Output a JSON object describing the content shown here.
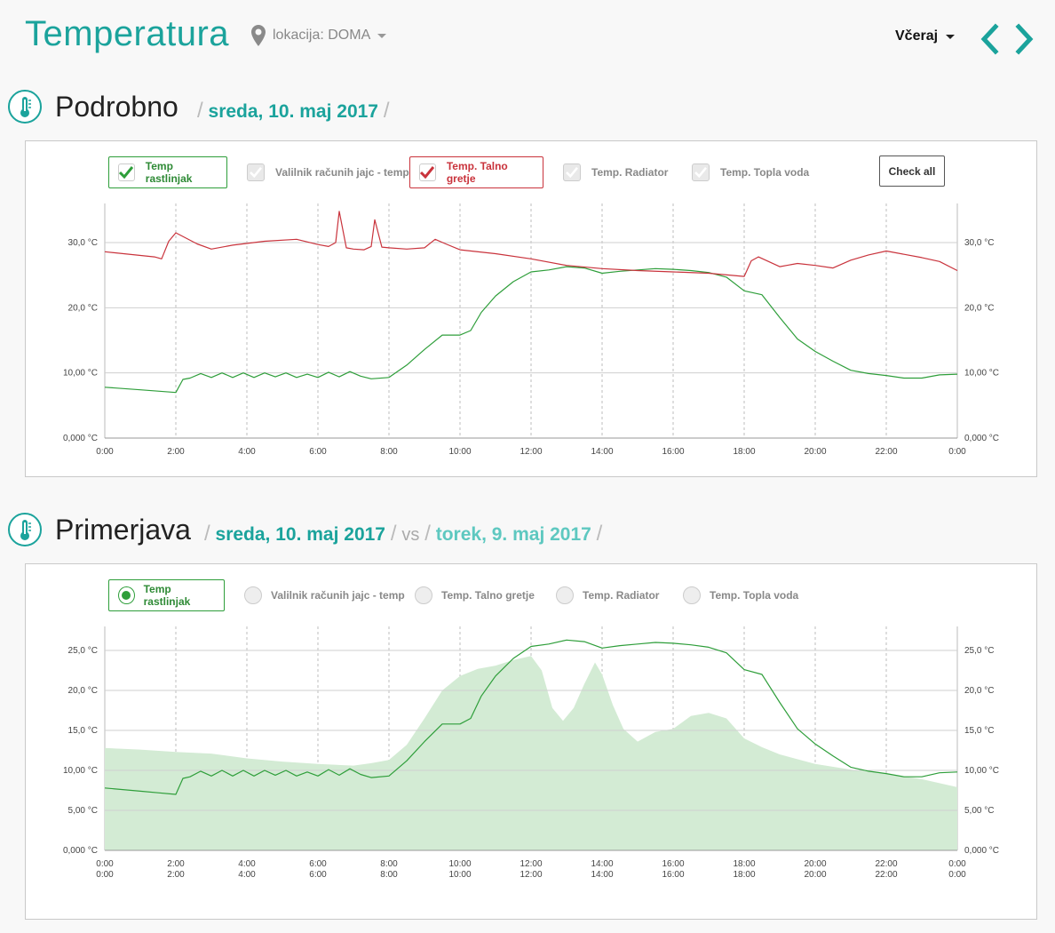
{
  "header": {
    "title": "Temperatura",
    "location_label": "lokacija: DOMA",
    "period_label": "Včeraj"
  },
  "detail": {
    "title": "Podrobno",
    "date": "sreda, 10. maj 2017",
    "legend": [
      {
        "label": "Temp rastlinjak",
        "checked": true,
        "color": "#2e9e3a"
      },
      {
        "label": "Valilnik računih jajc - temp",
        "checked": false
      },
      {
        "label": "Temp. Talno gretje",
        "checked": true,
        "color": "#c9333c"
      },
      {
        "label": "Temp. Radiator",
        "checked": false
      },
      {
        "label": "Temp. Topla voda",
        "checked": false
      }
    ],
    "check_all_label": "Check all"
  },
  "compare": {
    "title": "Primerjava",
    "date_a": "sreda, 10. maj 2017",
    "vs_label": "vs",
    "date_b": "torek, 9. maj 2017",
    "legend": [
      {
        "label": "Temp rastlinjak",
        "selected": true
      },
      {
        "label": "Valilnik računih jajc - temp",
        "selected": false
      },
      {
        "label": "Temp. Talno gretje",
        "selected": false
      },
      {
        "label": "Temp. Radiator",
        "selected": false
      },
      {
        "label": "Temp. Topla voda",
        "selected": false
      }
    ]
  },
  "colors": {
    "accent": "#1ba39c",
    "green": "#2e9e3a",
    "red": "#c9333c",
    "area": "#d3ebd4"
  },
  "chart_data": [
    {
      "type": "line",
      "x_ticks": [
        "0:00",
        "2:00",
        "4:00",
        "6:00",
        "8:00",
        "10:00",
        "12:00",
        "14:00",
        "16:00",
        "18:00",
        "20:00",
        "22:00",
        "0:00"
      ],
      "y_ticks": [
        "0,000 °C",
        "10,00 °C",
        "20,0 °C",
        "30,0 °C"
      ],
      "ylim": [
        0,
        36
      ],
      "grid": true,
      "series": [
        {
          "name": "Temp rastlinjak",
          "color": "#2e9e3a",
          "x": [
            0,
            1,
            1.5,
            2,
            2.2,
            2.4,
            2.7,
            3,
            3.3,
            3.6,
            3.9,
            4.2,
            4.5,
            4.8,
            5.1,
            5.4,
            5.7,
            6,
            6.3,
            6.6,
            6.9,
            7.2,
            7.5,
            8,
            8.5,
            9,
            9.5,
            10,
            10.3,
            10.6,
            11,
            11.5,
            12,
            12.5,
            13,
            13.5,
            14,
            14.5,
            15,
            15.5,
            16,
            16.5,
            17,
            17.5,
            18,
            18.5,
            19,
            19.5,
            20,
            20.5,
            21,
            21.5,
            22,
            22.5,
            23,
            23.5,
            24
          ],
          "y": [
            7.8,
            7.4,
            7.2,
            7,
            9,
            9.2,
            9.9,
            9.3,
            10,
            9.3,
            10,
            9.3,
            10,
            9.4,
            10,
            9.3,
            9.8,
            9.3,
            10.1,
            9.4,
            10.2,
            9.5,
            9.1,
            9.3,
            11.2,
            13.6,
            15.8,
            15.8,
            16.5,
            19.3,
            21.8,
            24,
            25.5,
            25.8,
            26.3,
            26.1,
            25.3,
            25.6,
            25.8,
            26,
            25.9,
            25.7,
            25.4,
            24.7,
            22.6,
            22,
            18.5,
            15.2,
            13.3,
            11.8,
            10.4,
            9.9,
            9.6,
            9.2,
            9.2,
            9.7,
            9.8
          ]
        },
        {
          "name": "Temp. Talno gretje",
          "color": "#c9333c",
          "x": [
            0,
            1.4,
            1.6,
            1.8,
            2,
            2.6,
            3,
            3.6,
            4.5,
            5.4,
            6,
            6.3,
            6.5,
            6.6,
            6.8,
            7,
            7.3,
            7.5,
            7.6,
            7.8,
            8,
            8.5,
            9,
            9.3,
            9.6,
            10,
            11,
            12,
            13,
            14,
            15,
            16,
            17,
            18,
            18.2,
            18.4,
            19,
            19.5,
            20,
            20.5,
            21,
            21.5,
            22,
            22.5,
            23,
            23.5,
            24
          ],
          "y": [
            28.6,
            27.8,
            27.5,
            30.2,
            31.5,
            29.8,
            29,
            29.6,
            30.2,
            30.5,
            29.7,
            29.4,
            30,
            34.8,
            29.2,
            29,
            28.9,
            29.4,
            33.5,
            29.3,
            29.2,
            29,
            29.2,
            30.5,
            29.8,
            28.9,
            28.3,
            27.5,
            26.5,
            26,
            25.7,
            25.5,
            25.3,
            24.8,
            27.2,
            27.8,
            26.3,
            26.8,
            26.5,
            26.1,
            27.3,
            28.1,
            28.7,
            28.2,
            27.7,
            27.1,
            25.7
          ]
        }
      ]
    },
    {
      "type": "area",
      "x_ticks": [
        "0:00",
        "2:00",
        "4:00",
        "6:00",
        "8:00",
        "10:00",
        "12:00",
        "14:00",
        "16:00",
        "18:00",
        "20:00",
        "22:00",
        "0:00"
      ],
      "x_ticks_b": [
        "0:00",
        "2:00",
        "4:00",
        "6:00",
        "8:00",
        "10:00",
        "12:00",
        "14:00",
        "16:00",
        "18:00",
        "20:00",
        "22:00",
        "0:00"
      ],
      "y_ticks": [
        "0,000 °C",
        "5,00 °C",
        "10,00 °C",
        "15,0 °C",
        "20,0 °C",
        "25,0 °C"
      ],
      "ylim": [
        0,
        28
      ],
      "grid": true,
      "series": [
        {
          "name": "sreda, 10. maj 2017",
          "color": "#2e9e3a",
          "style": "line",
          "x": [
            0,
            1,
            1.5,
            2,
            2.2,
            2.4,
            2.7,
            3,
            3.3,
            3.6,
            3.9,
            4.2,
            4.5,
            4.8,
            5.1,
            5.4,
            5.7,
            6,
            6.3,
            6.6,
            6.9,
            7.2,
            7.5,
            8,
            8.5,
            9,
            9.5,
            10,
            10.3,
            10.6,
            11,
            11.5,
            12,
            12.5,
            13,
            13.5,
            14,
            14.5,
            15,
            15.5,
            16,
            16.5,
            17,
            17.5,
            18,
            18.5,
            19,
            19.5,
            20,
            20.5,
            21,
            21.5,
            22,
            22.5,
            23,
            23.5,
            24
          ],
          "y": [
            7.8,
            7.4,
            7.2,
            7,
            9,
            9.2,
            9.9,
            9.3,
            10,
            9.3,
            10,
            9.3,
            10,
            9.4,
            10,
            9.3,
            9.8,
            9.3,
            10.1,
            9.4,
            10.2,
            9.5,
            9.1,
            9.3,
            11.2,
            13.6,
            15.8,
            15.8,
            16.5,
            19.3,
            21.8,
            24,
            25.5,
            25.8,
            26.3,
            26.1,
            25.3,
            25.6,
            25.8,
            26,
            25.9,
            25.7,
            25.4,
            24.7,
            22.6,
            22,
            18.5,
            15.2,
            13.3,
            11.8,
            10.4,
            9.9,
            9.6,
            9.2,
            9.2,
            9.7,
            9.8
          ]
        },
        {
          "name": "torek, 9. maj 2017",
          "color": "#d3ebd4",
          "style": "area",
          "x": [
            0,
            1,
            2,
            3,
            4,
            5,
            6,
            7,
            7.5,
            8,
            8.5,
            9,
            9.5,
            10,
            10.5,
            11,
            11.5,
            12,
            12.3,
            12.6,
            12.9,
            13.2,
            13.5,
            13.8,
            14,
            14.3,
            14.6,
            15,
            15.5,
            16,
            16.5,
            17,
            17.5,
            18,
            18.5,
            19,
            20,
            21,
            22,
            23,
            24
          ],
          "y": [
            12.8,
            12.6,
            12.3,
            12.1,
            11.5,
            11.1,
            10.8,
            10.6,
            10.9,
            11.3,
            13.2,
            16.5,
            20,
            21.8,
            22.7,
            23.1,
            23.8,
            24.3,
            22.5,
            17.8,
            16.2,
            17.8,
            20.8,
            23.5,
            22,
            18.2,
            15.2,
            13.6,
            14.8,
            15.2,
            16.8,
            17.2,
            16.5,
            14,
            12.9,
            12,
            10.8,
            10.1,
            9.6,
            8.9,
            7.9
          ]
        }
      ]
    }
  ]
}
